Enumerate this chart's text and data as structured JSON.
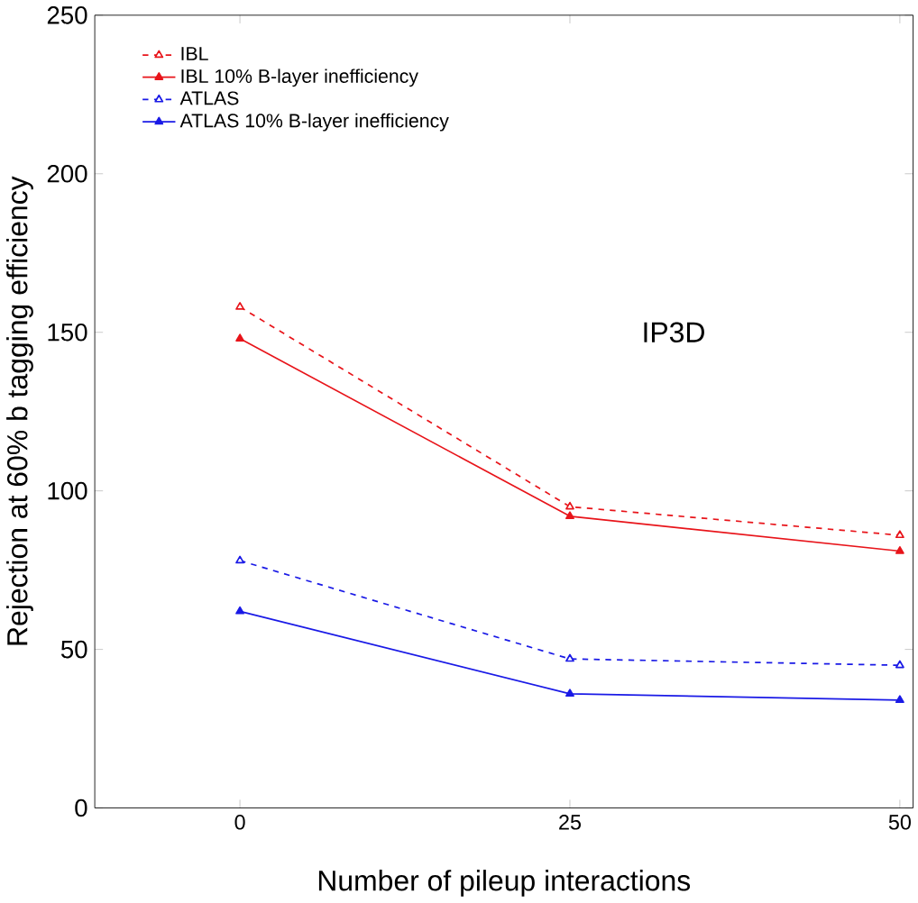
{
  "chart_data": {
    "type": "line",
    "xlabel": "Number of pileup interactions",
    "ylabel": "Rejection at 60% b tagging efficiency",
    "x": [
      0,
      25,
      50
    ],
    "series": [
      {
        "name": "IBL",
        "color": "#e8141a",
        "values": [
          158,
          95,
          86
        ],
        "line_style": "dashed"
      },
      {
        "name": "IBL 10% B-layer inefficiency",
        "color": "#e8141a",
        "values": [
          148,
          92,
          81
        ],
        "line_style": "solid"
      },
      {
        "name": "ATLAS",
        "color": "#1a1ae6",
        "values": [
          78,
          47,
          45
        ],
        "line_style": "dashed"
      },
      {
        "name": "ATLAS 10% B-layer inefficiency",
        "color": "#1a1ae6",
        "values": [
          62,
          36,
          34
        ],
        "line_style": "solid"
      }
    ],
    "xlim": [
      -11,
      51
    ],
    "ylim": [
      0,
      250
    ],
    "xticks": [
      0,
      25,
      50
    ],
    "yticks": [
      0,
      50,
      100,
      150,
      200,
      250
    ],
    "marker": "triangle",
    "legend": "top left",
    "grid": false,
    "annotations": [
      "IP3D"
    ]
  }
}
